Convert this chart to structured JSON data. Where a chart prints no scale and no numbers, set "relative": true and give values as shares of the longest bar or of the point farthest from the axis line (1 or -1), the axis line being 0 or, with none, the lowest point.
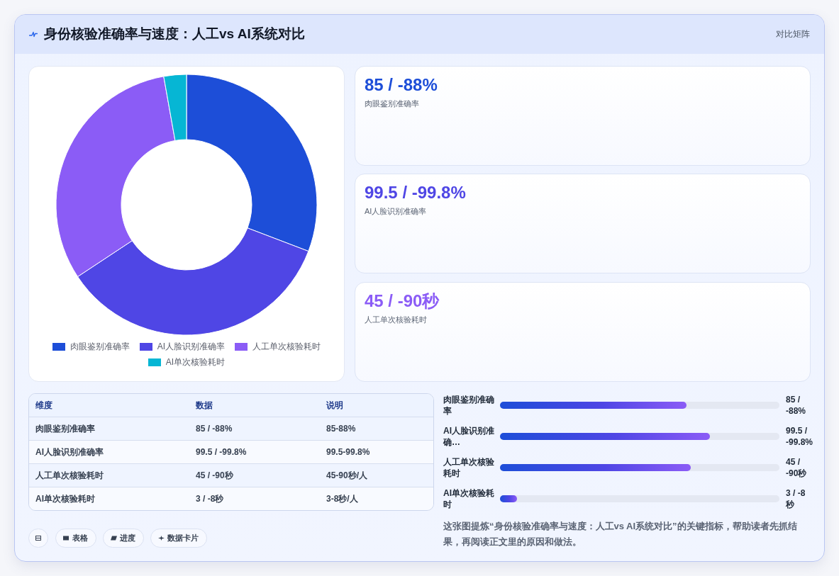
{
  "chart_data": [
    {
      "type": "other",
      "title": "身份核验准确率与速度：人工vs AI系统对比",
      "subtitle": "对比矩阵"
    },
    {
      "type": "donut",
      "categories": [
        "肉眼鉴别准确率",
        "AI人脸识别准确率",
        "人工单次核验耗时",
        "AI单次核验耗时"
      ],
      "values": [
        30.8,
        34.9,
        31.5,
        2.8
      ],
      "colors": [
        "#1d4ed8",
        "#4f46e5",
        "#8b5cf6",
        "#06b6d4"
      ],
      "legend": "bottom"
    },
    {
      "type": "other",
      "annotations": [
        "85 / -88%",
        "肉眼鉴别准确率",
        "99.5 / -99.8%",
        "AI人脸识别准确率",
        "45 / -90秒",
        "人工单次核验耗时"
      ],
      "colors": [
        "#1d4ed8",
        "#4f46e5",
        "#8b5cf6"
      ]
    },
    {
      "type": "other",
      "annotations": [
        "维度",
        "数据",
        "说明",
        "肉眼鉴别准确率",
        "85 / -88%",
        "85-88%",
        "AI人脸识别准确率",
        "99.5 / -99.8%",
        "99.5-99.8%",
        "人工单次核验耗时",
        "45 / -90秒",
        "45-90秒/人",
        "AI单次核验耗时",
        "3 / -8秒",
        "3-8秒/人"
      ]
    },
    {
      "type": "bar",
      "orientation": "horizontal",
      "relative": true,
      "categories": [
        "肉眼鉴别准确率",
        "AI人脸识别准确…",
        "人工单次核验耗时",
        "AI单次核验耗时"
      ],
      "values": [
        0.89,
        1,
        0.91,
        0.08
      ],
      "color": "#4f46e5",
      "annotations": [
        "85 / -88%",
        "99.5 / -99.8%",
        "45 / -90秒",
        "3 / -8秒"
      ]
    },
    {
      "type": "other",
      "annotations": [
        "表格",
        "进度",
        "数据卡片",
        "这张图提炼“身份核验准确率与速度：人工vs AI系统对比”的关键指标，帮助读者先抓结果，再阅读正文里的原因和做法。"
      ]
    }
  ]
}
